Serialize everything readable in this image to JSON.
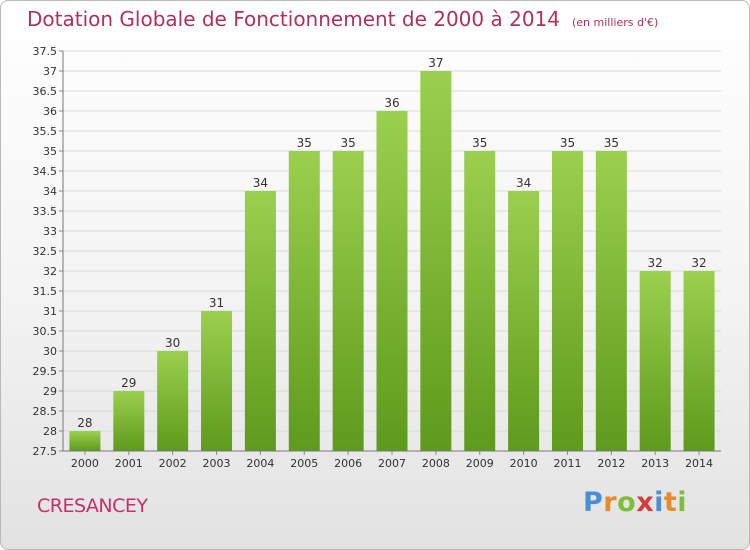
{
  "chart_data": {
    "type": "bar",
    "title": "Dotation Globale de Fonctionnement de 2000 à 2014",
    "unit_note": "(en milliers d'€)",
    "categories": [
      "2000",
      "2001",
      "2002",
      "2003",
      "2004",
      "2005",
      "2006",
      "2007",
      "2008",
      "2009",
      "2010",
      "2011",
      "2012",
      "2013",
      "2014"
    ],
    "values": [
      28,
      29,
      30,
      31,
      34,
      35,
      35,
      36,
      37,
      35,
      34,
      35,
      35,
      32,
      32
    ],
    "ylim": [
      27.5,
      37.5
    ],
    "ytick_step": 0.5,
    "grid": true,
    "bar_color_top": "#9bd04e",
    "bar_color_bottom": "#5e9a1c"
  },
  "commune": "CRESANCEY",
  "logo": {
    "p": "P",
    "r": "r",
    "o": "o",
    "x": "x",
    "i1": "i",
    "t": "t",
    "i2": "i"
  },
  "colors": {
    "title": "#b0305f",
    "commune": "#c4306a"
  }
}
